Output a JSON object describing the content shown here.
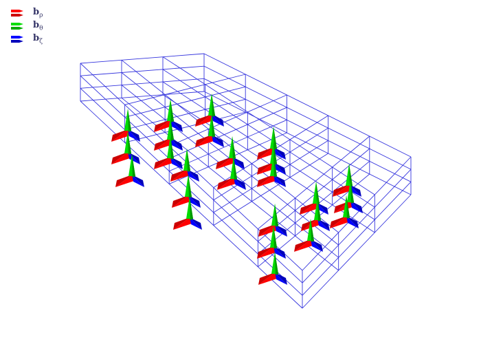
{
  "legend": [
    {
      "symbol": "b",
      "subscript": "ρ",
      "color": "#ff0000"
    },
    {
      "symbol": "b",
      "subscript": "θ",
      "color": "#00cc00"
    },
    {
      "symbol": "b",
      "subscript": "ζ",
      "color": "#0000ff"
    }
  ],
  "colors": {
    "grid": "#3333dd",
    "rho": "#ff0000",
    "theta": "#00dd00",
    "zeta": "#0000ff"
  }
}
